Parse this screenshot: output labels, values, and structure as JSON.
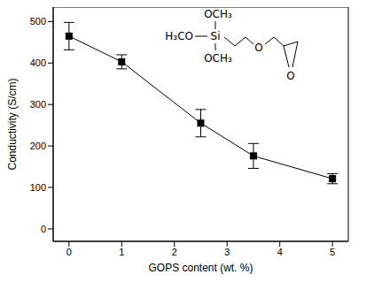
{
  "chart_data": {
    "type": "line",
    "x_label": "GOPS content (wt. %)",
    "y_label": "Conductivity (S/cm)",
    "x": [
      0,
      1,
      2.5,
      3.5,
      5
    ],
    "values": [
      465,
      403,
      255,
      176,
      121
    ],
    "errors": [
      33,
      17,
      33,
      30,
      12
    ],
    "color": "#000000",
    "marker": "square",
    "line_style": "solid",
    "xlim": [
      -0.3,
      5.3
    ],
    "xticks": [
      0,
      1,
      2,
      3,
      4,
      5
    ],
    "ylim": [
      -30,
      535
    ],
    "yticks": [
      0,
      100,
      200,
      300,
      400,
      500
    ],
    "grid": false,
    "annotations": [
      "OCH₃",
      "H₃CO",
      "Si",
      "OCH₃",
      "O",
      "O"
    ]
  }
}
